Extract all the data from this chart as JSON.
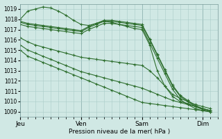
{
  "bg_color": "#d0e8e4",
  "grid_color": "#aaccc8",
  "line_color": "#2d6e2d",
  "marker": "+",
  "xlabel_text": "Pression niveau de la mer( hPa )",
  "ylim": [
    1008.5,
    1019.5
  ],
  "yticks": [
    1009,
    1010,
    1011,
    1012,
    1013,
    1014,
    1015,
    1016,
    1017,
    1018,
    1019
  ],
  "xtick_labels": [
    "Jeu",
    "Ven",
    "Sam",
    "Dim"
  ],
  "xtick_positions": [
    0,
    8,
    16,
    24
  ],
  "xlim": [
    0,
    26
  ],
  "series": [
    [
      1017.7,
      1017.5,
      1017.4,
      1017.3,
      1017.2,
      1017.1,
      1017.0,
      1016.9,
      1016.8,
      1017.2,
      1017.5,
      1017.8,
      1017.8,
      1017.7,
      1017.6,
      1017.5,
      1017.4,
      1016.0,
      1014.5,
      1013.0,
      1011.5,
      1010.5,
      1010.0,
      1009.5,
      1009.2,
      1009.0
    ],
    [
      1017.5,
      1017.3,
      1017.2,
      1017.1,
      1017.0,
      1016.9,
      1016.8,
      1016.7,
      1016.6,
      1017.0,
      1017.3,
      1017.6,
      1017.6,
      1017.5,
      1017.4,
      1017.3,
      1017.2,
      1015.7,
      1014.2,
      1012.7,
      1011.2,
      1010.2,
      1009.7,
      1009.3,
      1009.1,
      1009.0
    ],
    [
      1017.8,
      1017.6,
      1017.5,
      1017.4,
      1017.3,
      1017.2,
      1017.1,
      1017.0,
      1016.9,
      1017.3,
      1017.6,
      1017.9,
      1017.9,
      1017.8,
      1017.7,
      1017.6,
      1017.5,
      1016.1,
      1014.6,
      1013.1,
      1011.6,
      1010.6,
      1010.1,
      1009.6,
      1009.3,
      1009.1
    ],
    [
      1018.0,
      1018.8,
      1019.0,
      1019.2,
      1019.1,
      1018.8,
      1018.4,
      1017.9,
      1017.5,
      1017.4,
      1017.6,
      1017.8,
      1017.7,
      1017.5,
      1017.3,
      1017.1,
      1017.0,
      1015.5,
      1013.0,
      1011.5,
      1010.5,
      1010.0,
      1009.8,
      1009.5,
      1009.3,
      1009.1
    ],
    [
      1016.2,
      1015.8,
      1015.5,
      1015.3,
      1015.1,
      1014.9,
      1014.7,
      1014.5,
      1014.3,
      1014.2,
      1014.1,
      1014.0,
      1013.9,
      1013.8,
      1013.7,
      1013.6,
      1013.5,
      1013.0,
      1012.3,
      1011.5,
      1010.7,
      1010.3,
      1010.0,
      1009.7,
      1009.5,
      1009.3
    ],
    [
      1015.5,
      1015.0,
      1014.7,
      1014.4,
      1014.1,
      1013.8,
      1013.5,
      1013.2,
      1012.9,
      1012.7,
      1012.5,
      1012.3,
      1012.1,
      1011.9,
      1011.7,
      1011.5,
      1011.3,
      1011.0,
      1010.7,
      1010.4,
      1010.1,
      1009.9,
      1009.7,
      1009.5,
      1009.3,
      1009.1
    ],
    [
      1015.0,
      1014.4,
      1014.1,
      1013.8,
      1013.5,
      1013.2,
      1012.9,
      1012.6,
      1012.3,
      1012.0,
      1011.7,
      1011.4,
      1011.1,
      1010.8,
      1010.5,
      1010.2,
      1009.9,
      1009.8,
      1009.7,
      1009.6,
      1009.5,
      1009.4,
      1009.3,
      1009.2,
      1009.1,
      1009.0
    ]
  ]
}
